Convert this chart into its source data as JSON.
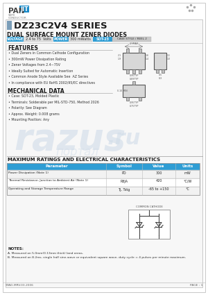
{
  "title": "DZ23C2V4 SERIES",
  "subtitle": "DUAL SURFACE MOUNT ZENER DIODES",
  "voltage_label": "VOLTAGE",
  "voltage_value": "2.4 to 75  Volts",
  "power_label": "POWER",
  "power_value": "300 mWatts",
  "package_label": "SOT-23",
  "package_note": "CASE STYLE / REEL 2",
  "features_title": "FEATURES",
  "features": [
    "Dual Zeners in Common Cathode Configuration",
    "300mW Power Dissipation Rating",
    "Zener Voltages from 2.4~75V",
    "Ideally Suited for Automatic Insertion",
    "Common Anode Style Available See  AZ Series",
    "In compliance with EU RoHS 2002/95/EC directives"
  ],
  "mech_title": "MECHANICAL DATA",
  "mech": [
    "Case: SOT-23, Molded Plastic",
    "Terminals: Solderable per MIL-STD-750, Method 2026",
    "Polarity: See Diagram",
    "Approx. Weight: 0.008 grams",
    "Mounting Position: Any"
  ],
  "max_title": "MAXIMUM RATINGS AND ELECTRICAL CHARACTERISTICS",
  "table_headers": [
    "Parameter",
    "Symbol",
    "Value",
    "Units"
  ],
  "table_rows": [
    [
      "Power Dissipation (Note 1)",
      "PD",
      "300",
      "mW"
    ],
    [
      "Thermal Resistance, Junction to Ambient Air (Note 1)",
      "RθJA",
      "420",
      "°C/W"
    ],
    [
      "Operating and Storage Temperature Range",
      "TJ, Tstg",
      "-65 to +150",
      "°C"
    ]
  ],
  "notes_title": "NOTES:",
  "note_a": "A. Measured on 5.0mm(0.13mm thick) land areas.",
  "note_b": "B. Measured on 8.2ms, single half sine-wave or equivalent square wave, duty cycle = 4 pulses per minute maximum.",
  "footer_left": "STAD-MRV.03.2006",
  "footer_right": "PAGE : 1",
  "bg_color": "#ffffff",
  "label_blue": "#2e9dd4",
  "table_header_blue": "#2e9dd4",
  "panjit_blue": "#1a8ac8",
  "title_box_color": "#7a9db8",
  "watermark_color": "#d0dce8"
}
